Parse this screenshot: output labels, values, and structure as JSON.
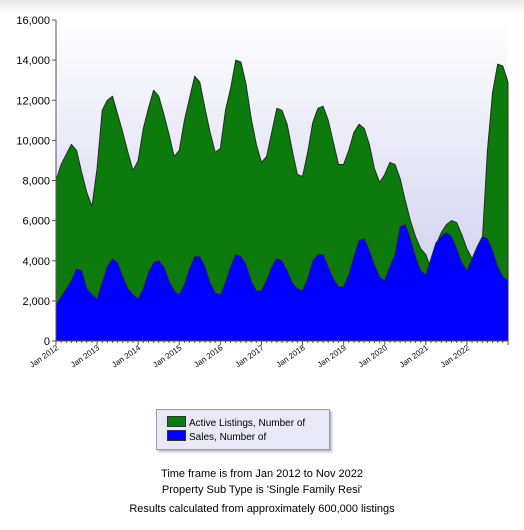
{
  "chart_data": {
    "type": "area",
    "stacked": false,
    "x_start": "Jan 2012",
    "x_end": "Nov 2022",
    "x_tick_labels": [
      "Jan 2012",
      "Jan 2013",
      "Jan 2014",
      "Jan 2015",
      "Jan 2016",
      "Jan 2017",
      "Jan 2018",
      "Jan 2019",
      "Jan 2020",
      "Jan 2021",
      "Jan 2022"
    ],
    "ylim": [
      0,
      16000
    ],
    "y_tick_labels": [
      "0",
      "2,000",
      "4,000",
      "6,000",
      "8,000",
      "10,000",
      "12,000",
      "14,000",
      "16,000"
    ],
    "grid": false,
    "plot_background": [
      "#ffffff",
      "#c7c7ec"
    ],
    "legend_position": "bottom-center",
    "series": [
      {
        "name": "Active Listings, Number of",
        "color": "#0d7a0d",
        "values": [
          8000,
          8800,
          9300,
          9800,
          9500,
          8400,
          7400,
          6700,
          8600,
          11500,
          12000,
          12200,
          11300,
          10400,
          9400,
          8500,
          9000,
          10600,
          11600,
          12500,
          12200,
          11300,
          10300,
          9200,
          9500,
          11000,
          12100,
          13200,
          12900,
          11600,
          10400,
          9400,
          9600,
          11500,
          12600,
          14000,
          13900,
          12800,
          11100,
          9800,
          8900,
          9200,
          10400,
          11600,
          11500,
          10800,
          9500,
          8300,
          8200,
          9400,
          10900,
          11600,
          11700,
          11000,
          9900,
          8800,
          8800,
          9500,
          10400,
          10800,
          10600,
          9800,
          8600,
          7900,
          8300,
          8900,
          8800,
          8100,
          7000,
          6000,
          5200,
          4600,
          4300,
          3600,
          4800,
          5400,
          5800,
          6000,
          5900,
          5300,
          4600,
          4100,
          3700,
          5000,
          9500,
          12400,
          13800,
          13700,
          12900
        ]
      },
      {
        "name": "Sales, Number of",
        "color": "#0000ff",
        "values": [
          1800,
          2200,
          2600,
          3000,
          3600,
          3500,
          2600,
          2300,
          2100,
          2900,
          3700,
          4100,
          3900,
          3200,
          2600,
          2300,
          2100,
          2600,
          3400,
          3900,
          4000,
          3700,
          3000,
          2500,
          2300,
          2800,
          3600,
          4200,
          4200,
          3700,
          2900,
          2400,
          2300,
          2900,
          3700,
          4300,
          4200,
          3800,
          3000,
          2500,
          2500,
          3000,
          3700,
          4100,
          4000,
          3500,
          2900,
          2600,
          2500,
          3100,
          4000,
          4300,
          4300,
          3700,
          3100,
          2700,
          2700,
          3300,
          4200,
          5000,
          5100,
          4500,
          3800,
          3200,
          3000,
          3700,
          4300,
          5700,
          5800,
          5100,
          4200,
          3500,
          3300,
          4100,
          4900,
          5200,
          5400,
          5200,
          4600,
          3900,
          3500,
          4100,
          4700,
          5200,
          5100,
          4500,
          3700,
          3200,
          3000
        ]
      }
    ]
  },
  "footer": {
    "line1": "Time frame is from Jan 2012 to Nov 2022",
    "line2": "Property Sub Type is 'Single Family Resi'",
    "line3": "Results calculated from approximately 600,000 listings"
  }
}
